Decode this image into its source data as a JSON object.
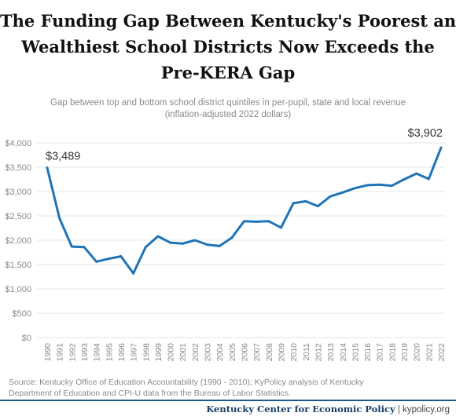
{
  "title_lines": [
    "The Funding Gap Between Kentucky's Poorest and",
    "Wealthiest School Districts Now Exceeds the",
    "Pre-KERA Gap"
  ],
  "subtitle_lines": [
    "Gap between top and bottom school district quintiles in per-pupil, state and local revenue",
    "(inflation-adjusted 2022 dollars)"
  ],
  "source_lines": [
    "Source: Kentucky Office of Education Accountability (1990 - 2010); KyPolicy analysis of Kentucky",
    "Department of Education and CPI-U data from the Bureau of Labor Statistics."
  ],
  "footer": {
    "org": "Kentucky Center for Economic Policy",
    "separator": "|",
    "site": "kypolicy.org"
  },
  "colors": {
    "line": "#1f74b8",
    "grid": "#e6e6e6",
    "axis_text": "#8a8a8a"
  },
  "chart_data": {
    "type": "line",
    "x": [
      "1990",
      "1991",
      "1992",
      "1993",
      "1994",
      "1995",
      "1996",
      "1997",
      "1998",
      "1999",
      "2000",
      "2001",
      "2002",
      "2003",
      "2004",
      "2005",
      "2006",
      "2007",
      "2008",
      "2009",
      "2010",
      "2011",
      "2012",
      "2013",
      "2014",
      "2015",
      "2016",
      "2017",
      "2018",
      "2019",
      "2020",
      "2021",
      "2022"
    ],
    "series": [
      {
        "values": [
          3489,
          2450,
          1870,
          1860,
          1560,
          1620,
          1670,
          1320,
          1860,
          2080,
          1950,
          1930,
          2000,
          1910,
          1880,
          2050,
          2390,
          2380,
          2390,
          2260,
          2760,
          2800,
          2700,
          2900,
          2980,
          3070,
          3130,
          3140,
          3120,
          3250,
          3370,
          3260,
          3902
        ]
      }
    ],
    "y_ticks": [
      "$0",
      "$500",
      "$1,000",
      "$1,500",
      "$2,000",
      "$2,500",
      "$3,000",
      "$3,500",
      "$4,000"
    ],
    "ylim": [
      0,
      4000
    ],
    "grid": "horizontal",
    "annotations": [
      {
        "x": "1990",
        "text": "$3,489"
      },
      {
        "x": "2022",
        "text": "$3,902"
      }
    ]
  }
}
